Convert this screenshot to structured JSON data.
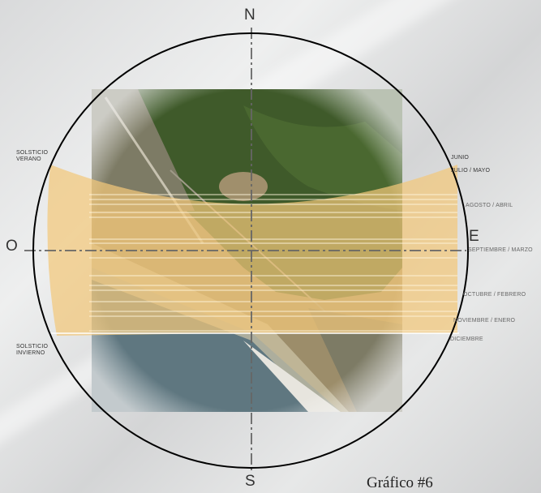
{
  "compass": {
    "north": "N",
    "south": "S",
    "east": "E",
    "west": "O"
  },
  "solstice_labels": {
    "summer": "SOLSTICIO VERANO",
    "winter": "SOLSTICIO INVIERNO"
  },
  "months": {
    "junio": "JUNIO",
    "julio_mayo": "JULIO / MAYO",
    "agosto_abril": "AGOSTO  /  ABRIL",
    "septiembre_marzo": "SEPTIEMBRE / MARZO",
    "octubre_febrero": "OCTUBRE  / FEBRERO",
    "noviembre_enero": "NOVIEMBRE  / ENERO",
    "diciembre": "DICIEMBRE"
  },
  "caption": "Gráfico #6",
  "colors": {
    "sun_band": "#f2c77a",
    "circle": "#000000",
    "axis": "#555555",
    "forest": "#3f5a2a",
    "sea": "#5f7780",
    "beach": "#cfc6a9"
  }
}
